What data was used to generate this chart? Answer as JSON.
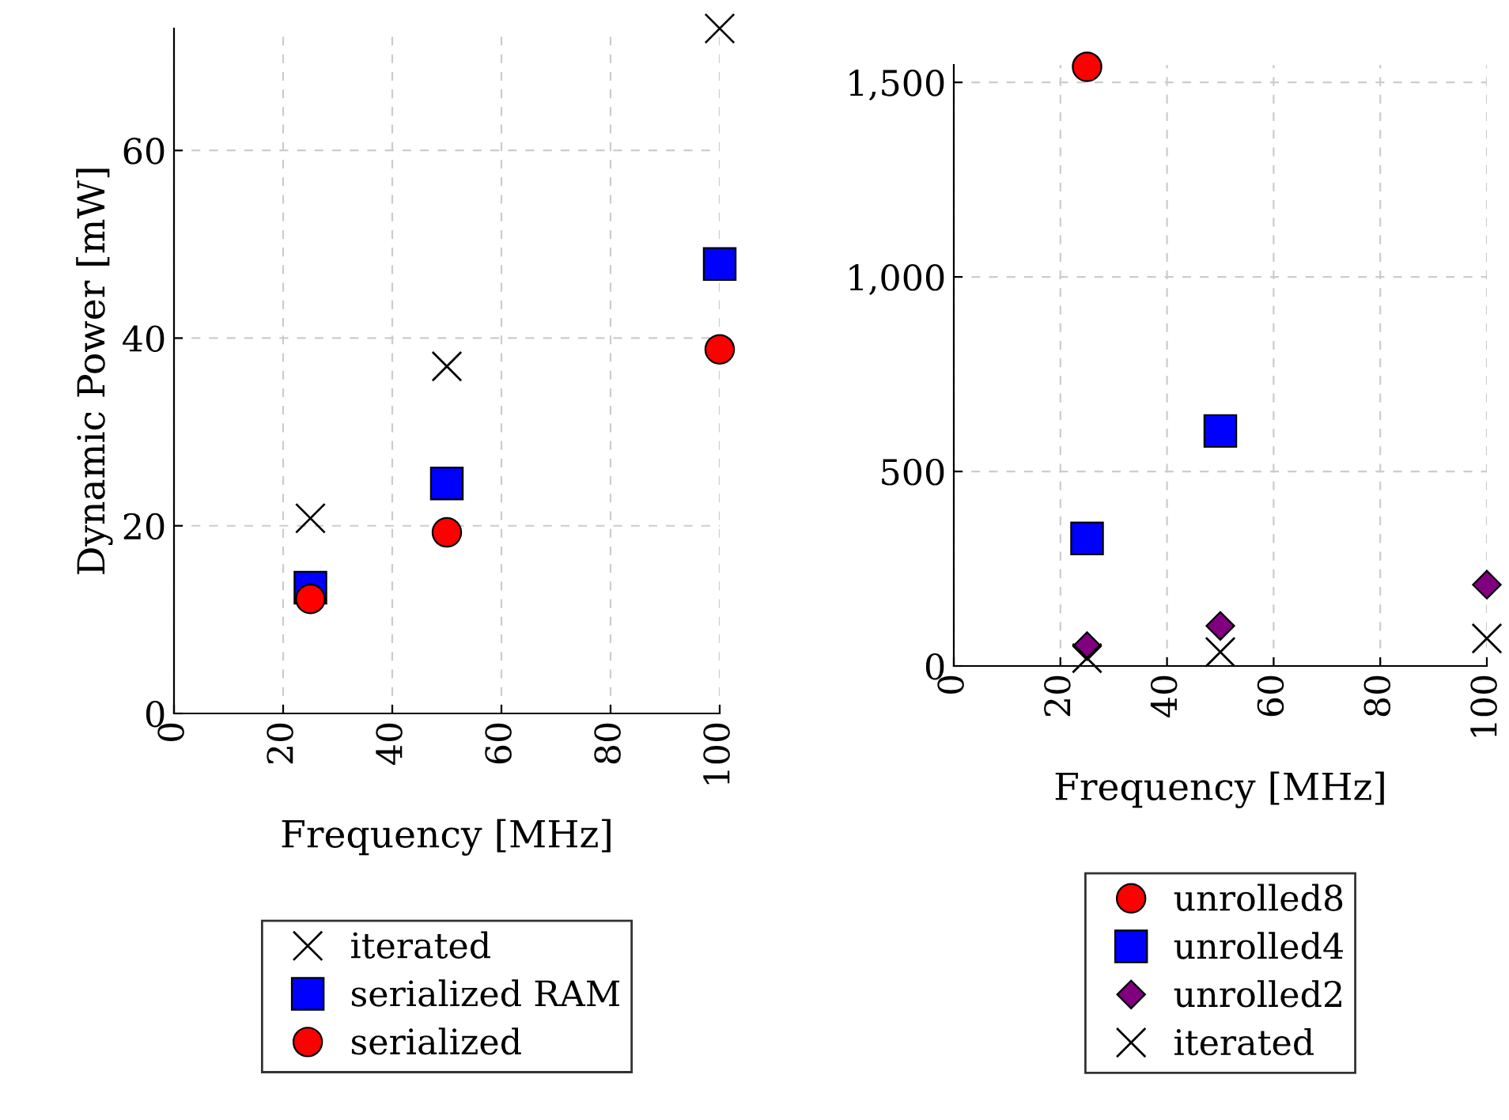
{
  "chart_data": [
    {
      "type": "scatter",
      "xlabel": "Frequency [MHz]",
      "ylabel": "Dynamic Power [mW]",
      "x": [
        25,
        50,
        100
      ],
      "xlim": [
        0,
        100
      ],
      "xticks": [
        0,
        20,
        40,
        60,
        80,
        100
      ],
      "ylim": [
        0,
        73
      ],
      "yticks": [
        0,
        20,
        40,
        60
      ],
      "grid": true,
      "legend": "bottom",
      "series": [
        {
          "name": "iterated",
          "color": "#000000",
          "marker": "cross",
          "values": [
            20.8,
            37.0,
            73
          ]
        },
        {
          "name": "serialized RAM",
          "color": "#0000ff",
          "marker": "square",
          "values": [
            13.4,
            24.5,
            47.9
          ]
        },
        {
          "name": "serialized",
          "color": "#ff0000",
          "marker": "circle",
          "values": [
            12.2,
            19.3,
            38.8
          ]
        }
      ]
    },
    {
      "type": "scatter",
      "xlabel": "Frequency [MHz]",
      "x": [
        25,
        50,
        100
      ],
      "xlim": [
        0,
        100
      ],
      "xticks": [
        0,
        20,
        40,
        60,
        80,
        100
      ],
      "ylim": [
        0,
        1545
      ],
      "yticks": [
        {
          "value": 0,
          "label": "0"
        },
        {
          "value": 500,
          "label": "500"
        },
        {
          "value": 1000,
          "label": "1,000"
        },
        {
          "value": 1500,
          "label": "1,500"
        }
      ],
      "grid": true,
      "legend": "bottom",
      "series": [
        {
          "name": "unrolled8",
          "color": "#ff0000",
          "marker": "circle",
          "values": [
            1540,
            null,
            null
          ]
        },
        {
          "name": "unrolled4",
          "color": "#0000ff",
          "marker": "square",
          "values": [
            328,
            604,
            null
          ]
        },
        {
          "name": "unrolled2",
          "color": "#800080",
          "marker": "diamond",
          "values": [
            51,
            103,
            209
          ]
        },
        {
          "name": "iterated",
          "color": "#000000",
          "marker": "cross",
          "values": [
            20,
            36,
            71
          ]
        }
      ]
    }
  ]
}
